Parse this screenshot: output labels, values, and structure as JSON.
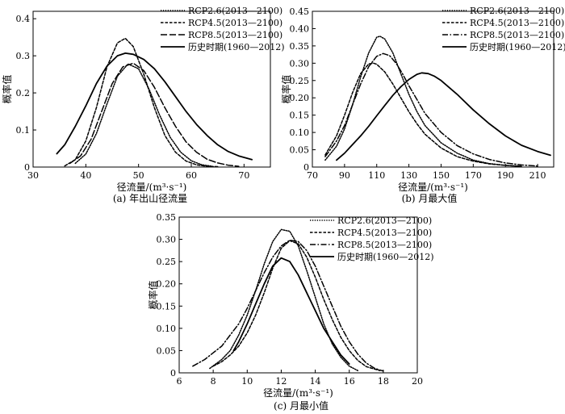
{
  "figure": {
    "panels": [
      {
        "caption": "(a) 年出山径流量"
      },
      {
        "caption": "(b) 月最大值"
      },
      {
        "caption": "(c) 月最小值"
      }
    ]
  },
  "chart_data": [
    {
      "type": "line",
      "caption": "(a) 年出山径流量",
      "xlabel": "径流量/(m³·s⁻¹)",
      "ylabel": "概率值",
      "xlim": [
        30,
        75
      ],
      "ylim": [
        0,
        0.42
      ],
      "xticks": [
        30,
        40,
        50,
        60,
        70
      ],
      "yticks": [
        0,
        0.1,
        0.2,
        0.3,
        0.4
      ],
      "xtick_labels": [
        "30",
        "40",
        "50",
        "60",
        "70"
      ],
      "ytick_labels": [
        "0",
        "0.1",
        "0.2",
        "0.3",
        "0.4"
      ],
      "legend_position": "top-right",
      "series": [
        {
          "name": "RCP2.6(2013—2100)",
          "style": "dotted",
          "x": [
            38,
            40,
            42,
            44,
            46,
            48,
            50,
            52,
            54,
            56,
            58,
            60,
            62,
            64
          ],
          "y": [
            0.01,
            0.035,
            0.09,
            0.17,
            0.245,
            0.278,
            0.265,
            0.21,
            0.14,
            0.08,
            0.04,
            0.017,
            0.006,
            0.002
          ]
        },
        {
          "name": "RCP4.5(2013—2100)",
          "style": "dashed",
          "x": [
            36,
            38,
            40,
            42,
            44,
            46,
            47.5,
            49,
            51,
            53,
            55,
            57,
            59,
            61,
            63,
            65
          ],
          "y": [
            0.003,
            0.02,
            0.07,
            0.16,
            0.27,
            0.335,
            0.347,
            0.325,
            0.25,
            0.16,
            0.085,
            0.04,
            0.016,
            0.006,
            0.002,
            0.001
          ]
        },
        {
          "name": "RCP8.5(2013—2100)",
          "style": "longdash",
          "x": [
            37,
            39,
            41,
            43,
            45,
            47,
            49,
            51,
            53,
            55,
            57,
            59,
            61,
            63,
            65,
            67,
            69
          ],
          "y": [
            0.01,
            0.03,
            0.075,
            0.15,
            0.225,
            0.27,
            0.28,
            0.26,
            0.215,
            0.16,
            0.11,
            0.068,
            0.04,
            0.021,
            0.011,
            0.005,
            0.002
          ]
        },
        {
          "name": "历史时期(1960—2012)",
          "style": "solid",
          "x": [
            34.5,
            36,
            38,
            40,
            42,
            44,
            46,
            47.5,
            49,
            51,
            53,
            55,
            57,
            59,
            61,
            63,
            65,
            67,
            69,
            71.5
          ],
          "y": [
            0.036,
            0.06,
            0.11,
            0.165,
            0.225,
            0.272,
            0.3,
            0.307,
            0.304,
            0.29,
            0.265,
            0.23,
            0.19,
            0.15,
            0.115,
            0.085,
            0.06,
            0.042,
            0.03,
            0.02
          ]
        }
      ]
    },
    {
      "type": "line",
      "caption": "(b) 月最大值",
      "xlabel": "径流量/(m³·s⁻¹)",
      "ylabel": "概率值",
      "xlim": [
        70,
        220
      ],
      "ylim": [
        0,
        0.45
      ],
      "xticks": [
        70,
        90,
        110,
        130,
        150,
        170,
        190,
        210
      ],
      "yticks": [
        0,
        0.05,
        0.1,
        0.15,
        0.2,
        0.25,
        0.3,
        0.35,
        0.4,
        0.45
      ],
      "xtick_labels": [
        "70",
        "90",
        "110",
        "130",
        "150",
        "170",
        "190",
        "210"
      ],
      "ytick_labels": [
        "0",
        "0.05",
        "0.10",
        "0.15",
        "0.20",
        "0.25",
        "0.30",
        "0.35",
        "0.40",
        "0.45"
      ],
      "legend_position": "top-right",
      "series": [
        {
          "name": "RCP2.6(2013—2100)",
          "style": "dotted",
          "x": [
            78,
            85,
            90,
            95,
            100,
            105,
            110,
            112,
            115,
            120,
            125,
            130,
            135,
            140,
            150,
            160,
            170,
            180,
            190,
            200
          ],
          "y": [
            0.02,
            0.06,
            0.11,
            0.18,
            0.26,
            0.33,
            0.375,
            0.378,
            0.37,
            0.33,
            0.27,
            0.21,
            0.16,
            0.12,
            0.07,
            0.04,
            0.02,
            0.01,
            0.005,
            0.002
          ]
        },
        {
          "name": "RCP4.5(2013—2100)",
          "style": "dashed",
          "x": [
            78,
            85,
            90,
            95,
            100,
            105,
            108,
            110,
            115,
            120,
            125,
            130,
            135,
            140,
            150,
            160,
            170,
            180,
            190,
            200
          ],
          "y": [
            0.035,
            0.09,
            0.15,
            0.215,
            0.27,
            0.298,
            0.3,
            0.297,
            0.275,
            0.24,
            0.2,
            0.16,
            0.125,
            0.095,
            0.055,
            0.03,
            0.017,
            0.009,
            0.005,
            0.002
          ]
        },
        {
          "name": "RCP8.5(2013—2100)",
          "style": "dashdot",
          "x": [
            78,
            85,
            90,
            95,
            100,
            105,
            110,
            114,
            118,
            122,
            126,
            130,
            135,
            140,
            150,
            160,
            170,
            180,
            190,
            200,
            210
          ],
          "y": [
            0.03,
            0.075,
            0.12,
            0.18,
            0.24,
            0.29,
            0.32,
            0.328,
            0.322,
            0.3,
            0.27,
            0.235,
            0.195,
            0.155,
            0.1,
            0.062,
            0.038,
            0.022,
            0.012,
            0.006,
            0.003
          ]
        },
        {
          "name": "历史时期(1960—2012)",
          "style": "solid",
          "x": [
            85,
            90,
            95,
            100,
            105,
            110,
            115,
            120,
            125,
            130,
            135,
            138,
            142,
            146,
            150,
            160,
            170,
            180,
            190,
            200,
            210,
            218
          ],
          "y": [
            0.02,
            0.04,
            0.065,
            0.09,
            0.118,
            0.148,
            0.178,
            0.207,
            0.232,
            0.253,
            0.268,
            0.272,
            0.27,
            0.262,
            0.25,
            0.21,
            0.165,
            0.125,
            0.09,
            0.063,
            0.045,
            0.034
          ]
        }
      ]
    },
    {
      "type": "line",
      "caption": "(c) 月最小值",
      "xlabel": "径流量/(m³·s⁻¹)",
      "ylabel": "概率值",
      "xlim": [
        6,
        20
      ],
      "ylim": [
        0,
        0.35
      ],
      "xticks": [
        6,
        8,
        10,
        12,
        14,
        16,
        18,
        20
      ],
      "yticks": [
        0,
        0.05,
        0.1,
        0.15,
        0.2,
        0.25,
        0.3,
        0.35
      ],
      "xtick_labels": [
        "6",
        "8",
        "10",
        "12",
        "14",
        "16",
        "18",
        "20"
      ],
      "ytick_labels": [
        "0",
        "0.05",
        "0.10",
        "0.15",
        "0.20",
        "0.25",
        "0.30",
        "0.35"
      ],
      "legend_position": "top-right",
      "series": [
        {
          "name": "RCP2.6(2013—2100)",
          "style": "dotted",
          "x": [
            7.8,
            8.5,
            9,
            9.5,
            10,
            10.5,
            11,
            11.5,
            12,
            12.5,
            13,
            13.5,
            14,
            14.5,
            15,
            15.5,
            16,
            16.5
          ],
          "y": [
            0.01,
            0.03,
            0.05,
            0.085,
            0.13,
            0.185,
            0.245,
            0.295,
            0.322,
            0.318,
            0.285,
            0.23,
            0.17,
            0.11,
            0.065,
            0.035,
            0.015,
            0.005
          ]
        },
        {
          "name": "RCP4.5(2013—2100)",
          "style": "dashed",
          "x": [
            8,
            8.5,
            9,
            9.5,
            10,
            10.5,
            11,
            11.5,
            12,
            12.5,
            13,
            13.5,
            14,
            14.5,
            15,
            15.5,
            16,
            16.5,
            17,
            17.8
          ],
          "y": [
            0.015,
            0.025,
            0.04,
            0.06,
            0.09,
            0.13,
            0.18,
            0.235,
            0.28,
            0.297,
            0.29,
            0.26,
            0.215,
            0.165,
            0.12,
            0.08,
            0.05,
            0.028,
            0.014,
            0.005
          ]
        },
        {
          "name": "RCP8.5(2013—2100)",
          "style": "dashdot",
          "x": [
            6.8,
            7.5,
            8,
            8.5,
            9,
            9.5,
            10,
            10.5,
            11,
            11.5,
            12,
            12.5,
            13,
            13.5,
            14,
            14.5,
            15,
            15.5,
            16,
            16.5,
            17,
            17.5,
            18
          ],
          "y": [
            0.015,
            0.03,
            0.045,
            0.06,
            0.085,
            0.11,
            0.145,
            0.185,
            0.225,
            0.26,
            0.285,
            0.298,
            0.295,
            0.275,
            0.24,
            0.195,
            0.15,
            0.105,
            0.07,
            0.042,
            0.022,
            0.01,
            0.004
          ]
        },
        {
          "name": "历史时期(1960—2012)",
          "style": "solid",
          "x": [
            9.2,
            9.5,
            10,
            10.5,
            11,
            11.5,
            12,
            12.5,
            13,
            13.5,
            14,
            14.5,
            15,
            15.5,
            16
          ],
          "y": [
            0.05,
            0.07,
            0.11,
            0.155,
            0.2,
            0.24,
            0.258,
            0.25,
            0.22,
            0.18,
            0.14,
            0.1,
            0.07,
            0.04,
            0.02
          ]
        }
      ]
    }
  ]
}
